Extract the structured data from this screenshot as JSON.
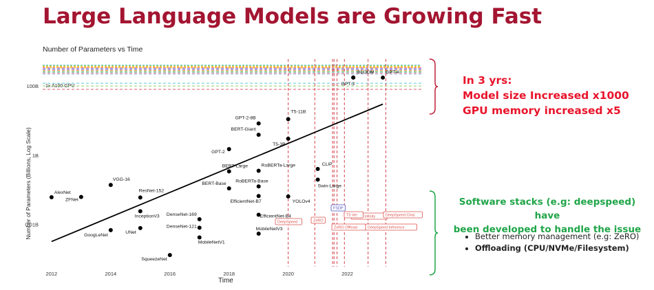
{
  "slide": {
    "title": "Large Language Models are Growing Fast",
    "callout_red": [
      "In 3 yrs:",
      "Model size Increased x1000",
      "GPU memory increased x5"
    ],
    "callout_green": [
      "Software stacks (e.g: deepspeed) have",
      "been developed to handle the issue"
    ],
    "bullets": [
      {
        "text": "Better memory management (e.g: ZeRO)",
        "bold": false
      },
      {
        "text": "Offloading (CPU/NVMe/Filesystem)",
        "bold": true
      }
    ],
    "colors": {
      "title": "#a31531",
      "callout_red": "#e8142b",
      "callout_green": "#1fa548",
      "brace_red": "#c0203a",
      "brace_green": "#1fa548"
    }
  },
  "chart_data": {
    "type": "scatter",
    "title": "Number of Parameters vs Time",
    "xlabel": "Time",
    "ylabel": "Number of Parameters (Billions, Log Scale)",
    "yscale": "log",
    "xlim": [
      2011.7,
      2024.5
    ],
    "ylim": [
      0.0006,
      600
    ],
    "xticks": [
      2012,
      2014,
      2016,
      2018,
      2020,
      2022
    ],
    "yticks": [
      {
        "value": 0.01,
        "label": "0.01B"
      },
      {
        "value": 1,
        "label": "1B"
      },
      {
        "value": 100,
        "label": "100B"
      }
    ],
    "models": [
      {
        "name": "AlexNet",
        "x": 2012.0,
        "y": 0.061
      },
      {
        "name": "ZFNet",
        "x": 2013.0,
        "y": 0.062
      },
      {
        "name": "VGG-16",
        "x": 2014.0,
        "y": 0.138
      },
      {
        "name": "GoogLeNet",
        "x": 2014.0,
        "y": 0.0068
      },
      {
        "name": "ResNet-152",
        "x": 2015.0,
        "y": 0.06
      },
      {
        "name": "InceptionV3",
        "x": 2015.0,
        "y": 0.024
      },
      {
        "name": "UNet",
        "x": 2015.0,
        "y": 0.0078
      },
      {
        "name": "SqueezeNet",
        "x": 2016.0,
        "y": 0.0013
      },
      {
        "name": "DenseNet-169",
        "x": 2017.0,
        "y": 0.0141
      },
      {
        "name": "DenseNet-121",
        "x": 2017.0,
        "y": 0.008
      },
      {
        "name": "MobileNetV1",
        "x": 2017.0,
        "y": 0.0042
      },
      {
        "name": "GPT-2",
        "x": 2018.0,
        "y": 1.5
      },
      {
        "name": "BERT-Large",
        "x": 2018.0,
        "y": 0.34
      },
      {
        "name": "BERT-Base",
        "x": 2018.0,
        "y": 0.11
      },
      {
        "name": "GPT-2-8B",
        "x": 2019.0,
        "y": 8.3
      },
      {
        "name": "BERT-Giant",
        "x": 2019.0,
        "y": 3.9
      },
      {
        "name": "RoBERTa-Large",
        "x": 2019.0,
        "y": 0.355
      },
      {
        "name": "RoBERTa-Base",
        "x": 2019.0,
        "y": 0.125
      },
      {
        "name": "EfficientNet-B7",
        "x": 2019.0,
        "y": 0.066
      },
      {
        "name": "EfficientNet-B4",
        "x": 2019.0,
        "y": 0.019
      },
      {
        "name": "MobileNetV3",
        "x": 2019.0,
        "y": 0.0054
      },
      {
        "name": "T5-11B",
        "x": 2020.0,
        "y": 11
      },
      {
        "name": "T5-3B",
        "x": 2020.0,
        "y": 3
      },
      {
        "name": "YOLOv4",
        "x": 2020.0,
        "y": 0.064
      },
      {
        "name": "CLIP",
        "x": 2021.0,
        "y": 0.4
      },
      {
        "name": "Swin-Large",
        "x": 2021.0,
        "y": 0.197
      },
      {
        "name": "GPT-3",
        "x": 2022.2,
        "y": 175
      },
      {
        "name": "BLOOM",
        "x": 2022.2,
        "y": 176
      },
      {
        "name": "GPT-4",
        "x": 2023.2,
        "y": 175
      }
    ],
    "gpu_memory_lines": [
      {
        "label": "1x A100 GPU",
        "y": 80
      }
    ],
    "frameworks": [
      {
        "label": "FSDP",
        "x": 2021.0,
        "color": "#4a4fbf"
      },
      {
        "label": "DeepSpeed",
        "x": 2019.7,
        "color": "#d9534f"
      },
      {
        "label": "ZeRO",
        "x": 2020.5,
        "color": "#d9534f"
      },
      {
        "label": "ZeRO Offload",
        "x": 2021.4,
        "color": "#d9534f"
      },
      {
        "label": "ZeRO Infinity",
        "x": 2021.6,
        "color": "#d9534f"
      },
      {
        "label": "DeepSpeed Inference",
        "x": 2022.6,
        "color": "#d9534f"
      },
      {
        "label": "DeepSpeed Chat",
        "x": 2023.4,
        "color": "#d9534f"
      },
      {
        "label": "T5 Ver",
        "x": 2021.5,
        "color": "#d9534f"
      }
    ],
    "trend": {
      "from": {
        "x": 2012,
        "y": 0.0032
      },
      "to": {
        "x": 2023.2,
        "y": 30
      }
    }
  }
}
